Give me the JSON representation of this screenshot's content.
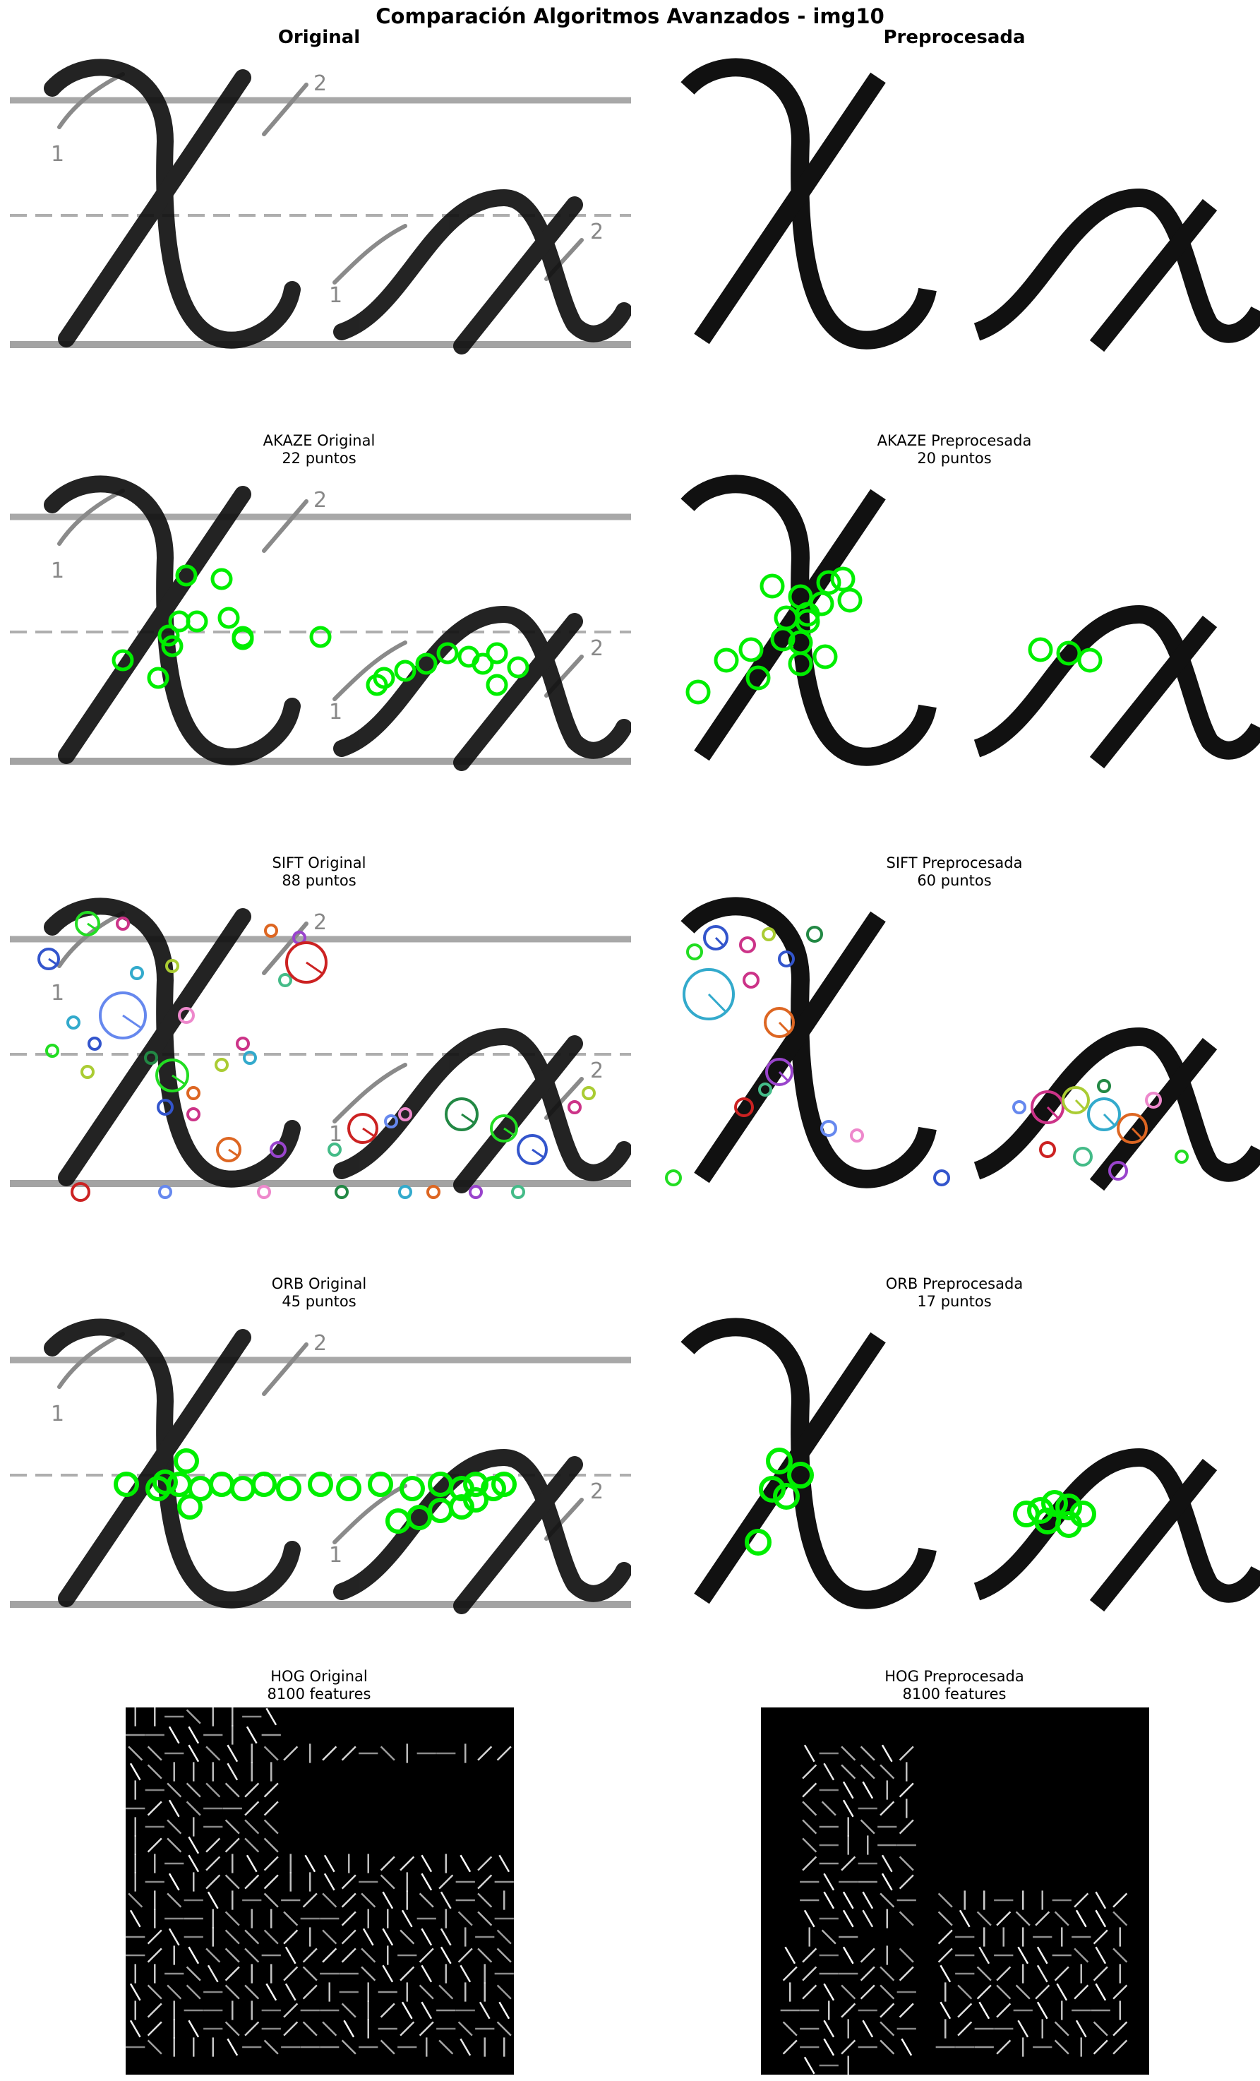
{
  "figure": {
    "title": "Comparación Algoritmos Avanzados - img10"
  },
  "panels": [
    {
      "id": "orig",
      "title": "Original",
      "subtitle": ""
    },
    {
      "id": "prep",
      "title": "Preprocesada",
      "subtitle": ""
    },
    {
      "id": "akaze-orig",
      "title": "AKAZE Original",
      "subtitle": "22 puntos",
      "keypoints": 22
    },
    {
      "id": "akaze-prep",
      "title": "AKAZE Preprocesada",
      "subtitle": "20 puntos",
      "keypoints": 20
    },
    {
      "id": "sift-orig",
      "title": "SIFT Original",
      "subtitle": "88 puntos",
      "keypoints": 88
    },
    {
      "id": "sift-prep",
      "title": "SIFT Preprocesada",
      "subtitle": "60 puntos",
      "keypoints": 60
    },
    {
      "id": "orb-orig",
      "title": "ORB Original",
      "subtitle": "45 puntos",
      "keypoints": 45
    },
    {
      "id": "orb-prep",
      "title": "ORB Preprocesada",
      "subtitle": "17 puntos",
      "keypoints": 17
    },
    {
      "id": "hog-orig",
      "title": "HOG Original",
      "subtitle": "8100 features",
      "features": 8100
    },
    {
      "id": "hog-prep",
      "title": "HOG Preprocesada",
      "subtitle": "8100 features",
      "features": 8100
    }
  ],
  "colors": {
    "keypoint_green": "#00ee00",
    "stroke_black": "#111111",
    "guide_line_gray": "#9a9a9a",
    "hog_background": "#000000",
    "hog_glyph": "#ffffff"
  }
}
